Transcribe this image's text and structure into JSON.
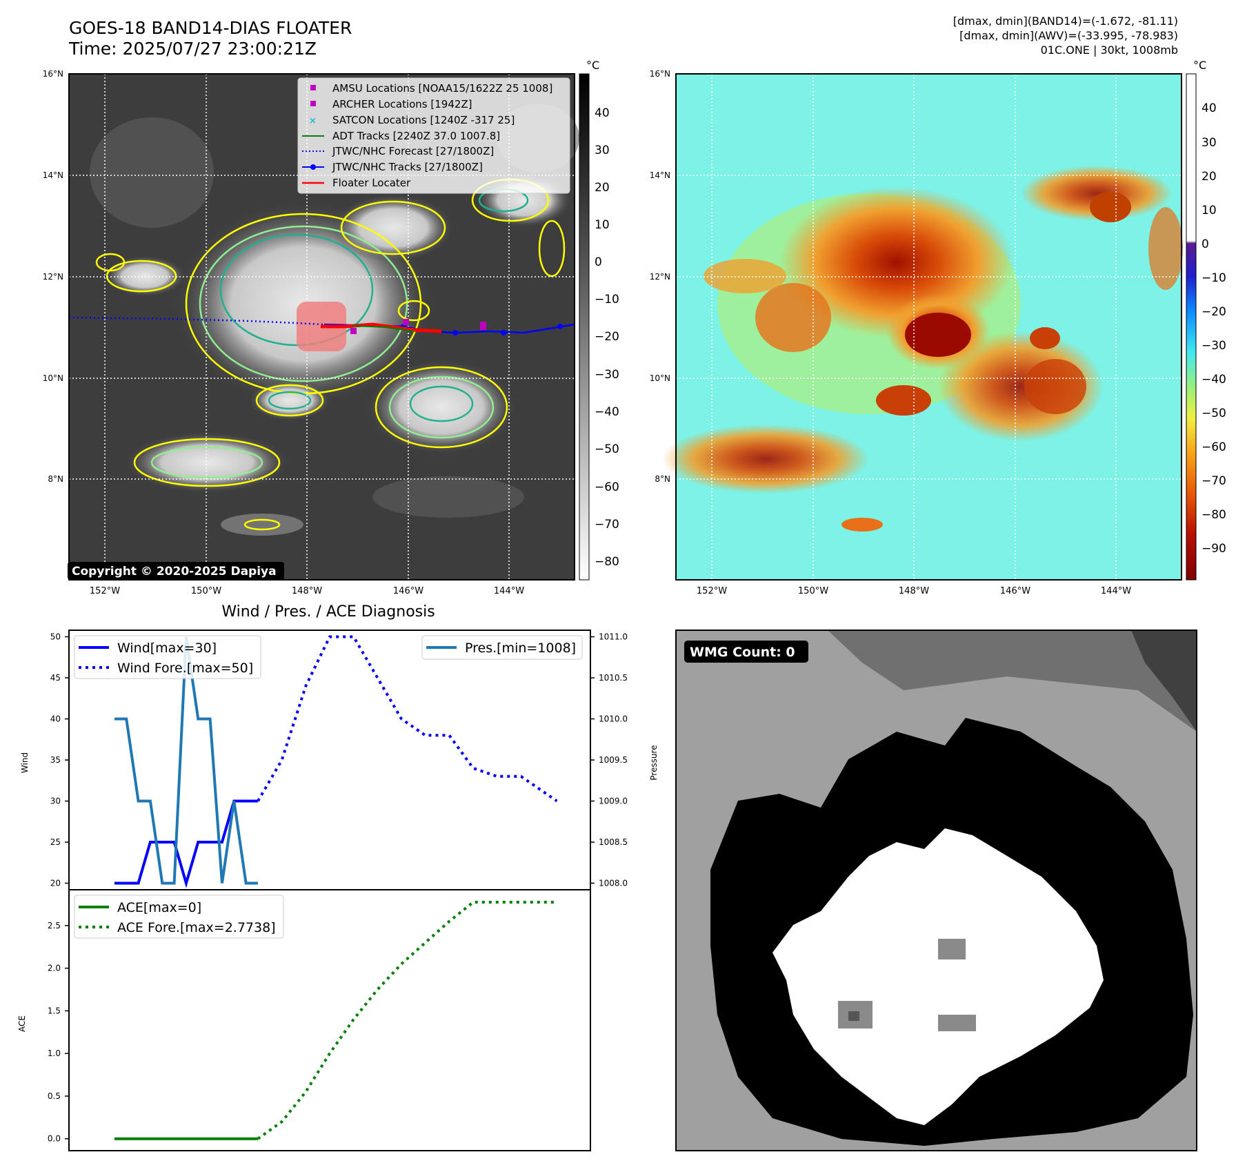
{
  "header": {
    "title_line1": "GOES-18 BAND14-DIAS FLOATER",
    "title_line2": "Time: 2025/07/27 23:00:21Z",
    "info_line1": "[dmax, dmin](BAND14)=(-1.672, -81.11)",
    "info_line2": "[dmax, dmin](AWV)=(-33.995, -78.983)",
    "info_line3": "01C.ONE | 30kt, 1008mb"
  },
  "ir_map": {
    "lat_labels": [
      "16°N",
      "14°N",
      "12°N",
      "10°N",
      "8°N"
    ],
    "lon_labels": [
      "152°W",
      "150°W",
      "148°W",
      "146°W",
      "144°W"
    ],
    "copyright": "Copyright © 2020-2025 Dapiya",
    "colorbar_unit": "°C",
    "colorbar_ticks": [
      "40",
      "30",
      "20",
      "10",
      "0",
      "−10",
      "−20",
      "−30",
      "−40",
      "−50",
      "−60",
      "−70",
      "−80"
    ],
    "legend": [
      {
        "label": "AMSU Locations [NOAA15/1622Z 25 1008]",
        "color": "#c000c0",
        "marker": "square"
      },
      {
        "label": "ARCHER Locations [1942Z]",
        "color": "#c000c0",
        "marker": "square"
      },
      {
        "label": "SATCON Locations [1240Z -317 25]",
        "color": "#17becf",
        "marker": "x"
      },
      {
        "label": "ADT Tracks [2240Z 37.0 1007.8]",
        "color": "#008000",
        "marker": "line"
      },
      {
        "label": "JTWC/NHC Forecast [27/1800Z]",
        "color": "#0000ff",
        "marker": "dotted"
      },
      {
        "label": "JTWC/NHC Tracks [27/1800Z]",
        "color": "#0000ff",
        "marker": "line-dot"
      },
      {
        "label": "Floater Locater",
        "color": "#ff0000",
        "marker": "line"
      }
    ]
  },
  "awv_map": {
    "lat_labels": [
      "16°N",
      "14°N",
      "12°N",
      "10°N",
      "8°N"
    ],
    "lon_labels": [
      "152°W",
      "150°W",
      "148°W",
      "146°W",
      "144°W"
    ],
    "colorbar_unit": "°C",
    "colorbar_ticks": [
      "40",
      "30",
      "20",
      "10",
      "0",
      "−10",
      "−20",
      "−30",
      "−40",
      "−50",
      "−60",
      "−70",
      "−80",
      "−90"
    ]
  },
  "wmg": {
    "label": "WMG Count: 0"
  },
  "chart_data": [
    {
      "type": "line",
      "title": "Wind / Pres. / ACE Diagnosis",
      "ylabel": "Wind",
      "y2label": "Pressure",
      "ylim": [
        19.2,
        50.8
      ],
      "y2lim": [
        1007.92,
        1011.08
      ],
      "yticks": [
        "50",
        "45",
        "40",
        "35",
        "30",
        "25",
        "20"
      ],
      "y2ticks": [
        "1011.0",
        "1010.5",
        "1010.0",
        "1009.5",
        "1009.0",
        "1008.5",
        "1008.0"
      ],
      "x": [
        0,
        1,
        2,
        3,
        4,
        5,
        6,
        7,
        8,
        9,
        10,
        11,
        12,
        13,
        14,
        15,
        16,
        17,
        18,
        19,
        20,
        21,
        22,
        23,
        24,
        25,
        26,
        27,
        28,
        29,
        30,
        31,
        32,
        33,
        34,
        35,
        36,
        37
      ],
      "series": [
        {
          "name": "Wind[max=30]",
          "axis": "left",
          "style": "solid",
          "color": "#0000ff",
          "x": [
            0,
            1,
            2,
            3,
            4,
            5,
            6,
            7,
            8,
            9,
            10,
            11,
            12
          ],
          "values": [
            20,
            20,
            20,
            25,
            25,
            25,
            20,
            25,
            25,
            25,
            30,
            30,
            30
          ]
        },
        {
          "name": "Wind Fore.[max=50]",
          "axis": "left",
          "style": "dotted",
          "color": "#0000ff",
          "x": [
            12,
            14,
            16,
            18,
            20,
            22,
            24,
            26,
            28,
            30,
            32,
            34,
            36,
            37
          ],
          "values": [
            30,
            35,
            44,
            50,
            50,
            45,
            40,
            38,
            38,
            34,
            33,
            33,
            31,
            30
          ]
        },
        {
          "name": "Pres.[min=1008]",
          "axis": "right",
          "style": "solid",
          "color": "#1f77b4",
          "x": [
            0,
            1,
            2,
            3,
            4,
            5,
            6,
            7,
            8,
            9,
            10,
            11,
            12
          ],
          "values": [
            1010,
            1010,
            1009,
            1009,
            1008,
            1008,
            1011,
            1010,
            1010,
            1008,
            1009,
            1008,
            1008
          ]
        }
      ]
    },
    {
      "type": "line",
      "ylabel": "ACE",
      "ylim": [
        -0.14,
        2.92
      ],
      "yticks": [
        "2.5",
        "2.0",
        "1.5",
        "1.0",
        "0.5",
        "0.0"
      ],
      "series": [
        {
          "name": "ACE[max=0]",
          "style": "solid",
          "color": "#008000",
          "x": [
            0,
            12
          ],
          "values": [
            0,
            0
          ]
        },
        {
          "name": "ACE Fore.[max=2.7738]",
          "style": "dotted",
          "color": "#008000",
          "x": [
            12,
            14,
            16,
            18,
            20,
            22,
            24,
            26,
            28,
            30,
            32,
            34,
            36,
            37
          ],
          "values": [
            0,
            0.2,
            0.55,
            1.0,
            1.4,
            1.75,
            2.05,
            2.3,
            2.55,
            2.7738,
            2.7738,
            2.7738,
            2.7738,
            2.7738
          ]
        }
      ]
    }
  ]
}
